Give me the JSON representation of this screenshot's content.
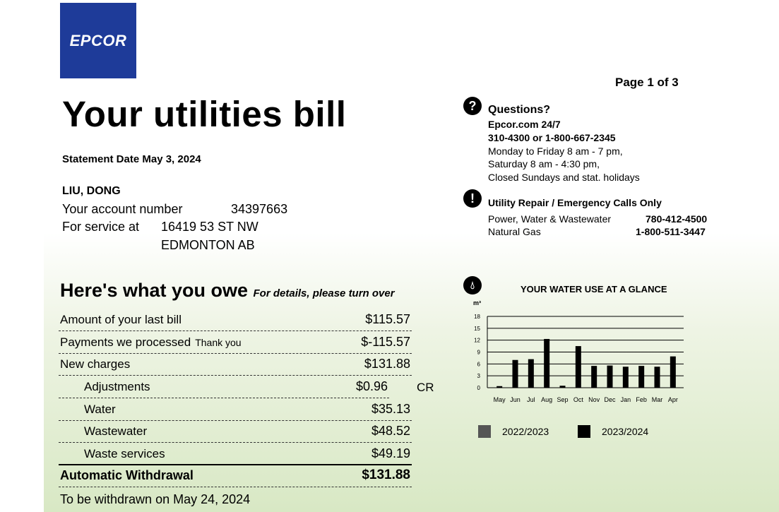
{
  "logo": {
    "text": "EPCOR",
    "color": "#1e3b99"
  },
  "page_indicator": "Page 1 of 3",
  "title": "Your utilities bill",
  "statement_date": "Statement Date May 3, 2024",
  "customer": {
    "name": "LIU, DONG",
    "account_label": "Your account number",
    "account_number": "34397663",
    "service_label": "For service at",
    "address_line1": "16419 53 ST NW",
    "address_line2": "EDMONTON AB"
  },
  "owe": {
    "heading": "Here's what you owe",
    "subheading": "For details, please turn over",
    "rows": [
      {
        "label": "Amount of your last bill",
        "amount": "$115.57"
      },
      {
        "label": "Payments we processed",
        "note": "Thank you",
        "amount": "$-115.57"
      },
      {
        "label": "New charges",
        "amount": "$131.88"
      },
      {
        "label": "Adjustments",
        "amount": "$0.96",
        "suffix": "CR"
      },
      {
        "label": "Water",
        "amount": "$35.13"
      },
      {
        "label": "Wastewater",
        "amount": "$48.52"
      },
      {
        "label": "Waste services",
        "amount": "$49.19"
      }
    ],
    "total_label": "Automatic Withdrawal",
    "total_amount": "$131.88",
    "withdraw_note": "To be withdrawn on May 24, 2024"
  },
  "questions": {
    "icon": "question-icon",
    "heading": "Questions?",
    "site": "Epcor.com 24/7",
    "phones": "310-4300 or 1-800-667-2345",
    "hours1": "Monday to Friday 8 am - 7 pm,",
    "hours2": "Saturday 8 am - 4:30 pm,",
    "hours3": "Closed Sundays and stat. holidays"
  },
  "emergency": {
    "icon": "exclamation-icon",
    "heading": "Utility Repair / Emergency Calls Only",
    "line1_label": "Power, Water & Wastewater",
    "line1_phone": "780-412-4500",
    "line2_label": "Natural Gas",
    "line2_phone": "1-800-511-3447"
  },
  "chart_data": {
    "type": "bar",
    "title": "YOUR WATER USE AT A GLANCE",
    "ylabel": "m³",
    "ylim": [
      0,
      18
    ],
    "yticks": [
      0,
      3,
      6,
      9,
      12,
      15,
      18
    ],
    "categories": [
      "May",
      "Jun",
      "Jul",
      "Aug",
      "Sep",
      "Oct",
      "Nov",
      "Dec",
      "Jan",
      "Feb",
      "Mar",
      "Apr"
    ],
    "series": [
      {
        "name": "2022/2023",
        "color": "#555555",
        "values": [
          0,
          0,
          0,
          0,
          0,
          0,
          0,
          0,
          0,
          0,
          0,
          0
        ]
      },
      {
        "name": "2023/2024",
        "color": "#000000",
        "values": [
          0.4,
          7,
          7.2,
          12.3,
          0.5,
          10.5,
          5.5,
          5.6,
          5.3,
          5.5,
          5.3,
          7.9
        ]
      }
    ],
    "grid": true
  }
}
